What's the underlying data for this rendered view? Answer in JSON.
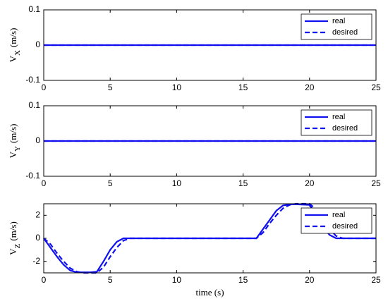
{
  "chart_data": [
    {
      "type": "line",
      "ylabel": "V",
      "ylabel_sub": "X",
      "ylabel_unit": "(m/s)",
      "xlim": [
        0,
        25
      ],
      "xticks": [
        0,
        5,
        10,
        15,
        20,
        25
      ],
      "ylim": [
        -0.1,
        0.1
      ],
      "yticks": [
        -0.1,
        0,
        0.1
      ],
      "legend": "upper right",
      "series": [
        {
          "name": "real",
          "color": "#1010f0",
          "line_style": "solid",
          "x": [
            0,
            25
          ],
          "values": [
            0,
            0
          ]
        },
        {
          "name": "desired",
          "color": "#1010f0",
          "line_style": "dashed",
          "x": [
            0,
            25
          ],
          "values": [
            0,
            0
          ]
        }
      ]
    },
    {
      "type": "line",
      "ylabel": "V",
      "ylabel_sub": "Y",
      "ylabel_unit": "(m/s)",
      "xlim": [
        0,
        25
      ],
      "xticks": [
        0,
        5,
        10,
        15,
        20,
        25
      ],
      "ylim": [
        -0.1,
        0.1
      ],
      "yticks": [
        -0.1,
        0,
        0.1
      ],
      "legend": "upper right",
      "series": [
        {
          "name": "real",
          "color": "#1010f0",
          "line_style": "solid",
          "x": [
            0,
            25
          ],
          "values": [
            0,
            0
          ]
        },
        {
          "name": "desired",
          "color": "#1010f0",
          "line_style": "dashed",
          "x": [
            0,
            25
          ],
          "values": [
            0,
            0
          ]
        }
      ]
    },
    {
      "type": "line",
      "ylabel": "V",
      "ylabel_sub": "Z",
      "ylabel_unit": "(m/s)",
      "xlabel": "time (s)",
      "xlim": [
        0,
        25
      ],
      "xticks": [
        0,
        5,
        10,
        15,
        20,
        25
      ],
      "ylim": [
        -3,
        3
      ],
      "yticks": [
        -2,
        0,
        2
      ],
      "legend": "upper right",
      "series": [
        {
          "name": "real",
          "color": "#1010f0",
          "line_style": "solid",
          "x": [
            0,
            0.5,
            1,
            1.5,
            2,
            2.5,
            3,
            3.5,
            4,
            4.5,
            5,
            5.5,
            6,
            10,
            16,
            16.5,
            17,
            17.5,
            18,
            18.5,
            19,
            20,
            20.5,
            21,
            21.5,
            22,
            25
          ],
          "values": [
            0,
            -0.8,
            -1.6,
            -2.3,
            -2.8,
            -2.95,
            -2.95,
            -2.95,
            -2.9,
            -2,
            -1,
            -0.3,
            0,
            0,
            0,
            0.8,
            1.6,
            2.4,
            2.85,
            2.95,
            2.95,
            2.9,
            2,
            1,
            0.3,
            0,
            0
          ]
        },
        {
          "name": "desired",
          "color": "#1010f0",
          "line_style": "dashed",
          "x": [
            0,
            0.5,
            1,
            1.5,
            2,
            2.5,
            3,
            3.5,
            4,
            4.5,
            5,
            5.5,
            6,
            6.5,
            10,
            16,
            16.5,
            17,
            17.5,
            18,
            18.5,
            19,
            20,
            20.5,
            21,
            21.5,
            22,
            22.5,
            25
          ],
          "values": [
            0,
            -0.5,
            -1.3,
            -2,
            -2.6,
            -2.9,
            -3,
            -3,
            -3,
            -2.5,
            -1.6,
            -0.8,
            -0.2,
            0,
            0,
            0,
            0.5,
            1.3,
            2,
            2.6,
            2.9,
            3,
            3,
            2.5,
            1.6,
            0.8,
            0.2,
            0,
            0
          ]
        }
      ]
    }
  ]
}
